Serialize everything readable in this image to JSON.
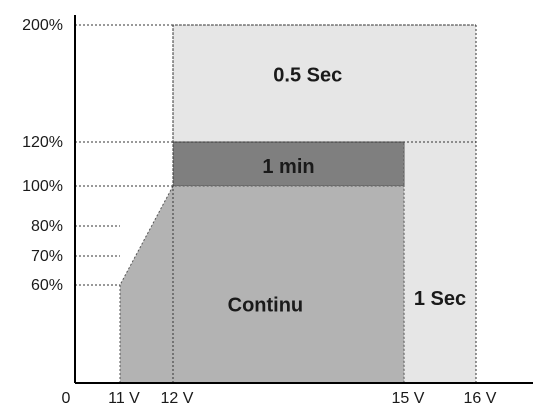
{
  "chart_data": {
    "type": "area",
    "title": "",
    "xlabel": "",
    "ylabel": "",
    "x_ticks": [
      {
        "value": 0,
        "label": "0"
      },
      {
        "value": 11,
        "label": "11 V"
      },
      {
        "value": 12,
        "label": "12 V"
      },
      {
        "value": 15,
        "label": "15 V"
      },
      {
        "value": 16,
        "label": "16 V"
      }
    ],
    "y_ticks": [
      {
        "value": 60,
        "label": "60%"
      },
      {
        "value": 70,
        "label": "70%"
      },
      {
        "value": 80,
        "label": "80%"
      },
      {
        "value": 100,
        "label": "100%"
      },
      {
        "value": 120,
        "label": "120%"
      },
      {
        "value": 200,
        "label": "200%"
      }
    ],
    "regions": [
      {
        "label": "0.5 Sec",
        "color": "#e6e6e6",
        "polygon": [
          [
            12,
            120
          ],
          [
            12,
            200
          ],
          [
            16,
            200
          ],
          [
            16,
            120
          ]
        ],
        "label_at": [
          13.75,
          166
        ]
      },
      {
        "label": "1 Sec",
        "color": "#e6e6e6",
        "polygon": [
          [
            15,
            0
          ],
          [
            15,
            120
          ],
          [
            16,
            120
          ],
          [
            16,
            0
          ]
        ],
        "label_at": [
          15.5,
          52
        ]
      },
      {
        "label": "1 min",
        "color": "#7f7f7f",
        "polygon": [
          [
            12,
            100
          ],
          [
            12,
            120
          ],
          [
            15,
            120
          ],
          [
            15,
            100
          ]
        ],
        "label_at": [
          13.5,
          109
        ]
      },
      {
        "label": "Continu",
        "color": "#b3b3b3",
        "polygon": [
          [
            11,
            0
          ],
          [
            11,
            60
          ],
          [
            12,
            100
          ],
          [
            15,
            100
          ],
          [
            15,
            0
          ]
        ],
        "label_at": [
          13.2,
          48
        ]
      }
    ]
  }
}
